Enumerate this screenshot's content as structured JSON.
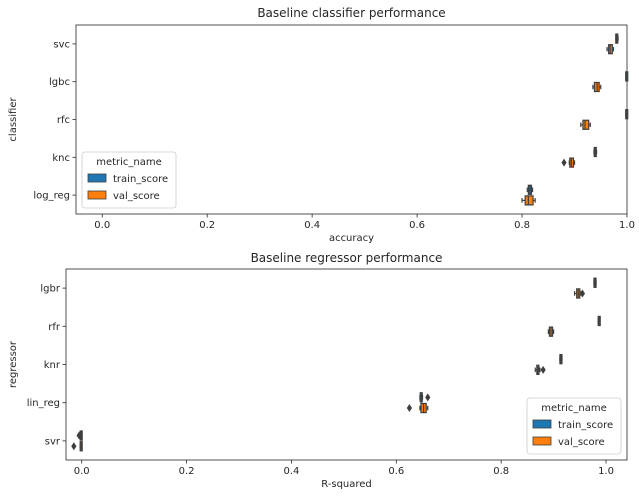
{
  "chart_data": [
    {
      "type": "boxplot-horizontal",
      "title": "Baseline classifier performance",
      "xlabel": "accuracy",
      "ylabel": "classifier",
      "xlim": [
        -0.05,
        1.0
      ],
      "xticks": [
        "0.0",
        "0.2",
        "0.4",
        "0.6",
        "0.8",
        "1.0"
      ],
      "categories": [
        "svc",
        "lgbc",
        "rfc",
        "knc",
        "log_reg"
      ],
      "legend": {
        "title": "metric_name",
        "position": "lower-left",
        "entries": [
          "train_score",
          "val_score"
        ]
      },
      "series": [
        {
          "name": "train_score",
          "color": "#1f77b4",
          "boxes": [
            {
              "min": 0.979,
              "q1": 0.979,
              "median": 0.98,
              "q3": 0.982,
              "max": 0.983,
              "outliers": []
            },
            {
              "min": 0.998,
              "q1": 0.999,
              "median": 0.999,
              "q3": 1.0,
              "max": 1.0,
              "outliers": []
            },
            {
              "min": 0.998,
              "q1": 0.999,
              "median": 0.999,
              "q3": 1.0,
              "max": 1.0,
              "outliers": []
            },
            {
              "min": 0.937,
              "q1": 0.938,
              "median": 0.94,
              "q3": 0.941,
              "max": 0.942,
              "outliers": []
            },
            {
              "min": 0.81,
              "q1": 0.812,
              "median": 0.815,
              "q3": 0.818,
              "max": 0.82,
              "outliers": []
            }
          ]
        },
        {
          "name": "val_score",
          "color": "#ff7f0e",
          "boxes": [
            {
              "min": 0.962,
              "q1": 0.965,
              "median": 0.968,
              "q3": 0.972,
              "max": 0.974,
              "outliers": []
            },
            {
              "min": 0.935,
              "q1": 0.938,
              "median": 0.943,
              "q3": 0.947,
              "max": 0.95,
              "outliers": []
            },
            {
              "min": 0.912,
              "q1": 0.916,
              "median": 0.92,
              "q3": 0.927,
              "max": 0.93,
              "outliers": []
            },
            {
              "min": 0.89,
              "q1": 0.891,
              "median": 0.894,
              "q3": 0.898,
              "max": 0.9,
              "outliers": [
                0.88
              ]
            },
            {
              "min": 0.8,
              "q1": 0.806,
              "median": 0.812,
              "q3": 0.821,
              "max": 0.825,
              "outliers": []
            }
          ]
        }
      ]
    },
    {
      "type": "boxplot-horizontal",
      "title": "Baseline regressor performance",
      "xlabel": "R-squared",
      "ylabel": "regressor",
      "xlim": [
        -0.03,
        1.04
      ],
      "xticks": [
        "0.0",
        "0.2",
        "0.4",
        "0.6",
        "0.8",
        "1.0"
      ],
      "categories": [
        "lgbr",
        "rfr",
        "knr",
        "lin_reg",
        "svr"
      ],
      "legend": {
        "title": "metric_name",
        "position": "lower-right",
        "entries": [
          "train_score",
          "val_score"
        ]
      },
      "series": [
        {
          "name": "train_score",
          "color": "#1f77b4",
          "boxes": [
            {
              "min": 0.977,
              "q1": 0.978,
              "median": 0.979,
              "q3": 0.98,
              "max": 0.981,
              "outliers": []
            },
            {
              "min": 0.985,
              "q1": 0.986,
              "median": 0.987,
              "q3": 0.988,
              "max": 0.988,
              "outliers": []
            },
            {
              "min": 0.912,
              "q1": 0.913,
              "median": 0.914,
              "q3": 0.915,
              "max": 0.916,
              "outliers": []
            },
            {
              "min": 0.645,
              "q1": 0.646,
              "median": 0.648,
              "q3": 0.649,
              "max": 0.65,
              "outliers": [
                0.66
              ]
            },
            {
              "min": -0.003,
              "q1": -0.002,
              "median": -0.001,
              "q3": 0.0,
              "max": 0.0,
              "outliers": [
                -0.005
              ]
            }
          ]
        },
        {
          "name": "val_score",
          "color": "#ff7f0e",
          "boxes": [
            {
              "min": 0.94,
              "q1": 0.944,
              "median": 0.947,
              "q3": 0.95,
              "max": 0.952,
              "outliers": [
                0.955
              ]
            },
            {
              "min": 0.89,
              "q1": 0.892,
              "median": 0.895,
              "q3": 0.898,
              "max": 0.9,
              "outliers": []
            },
            {
              "min": 0.865,
              "q1": 0.868,
              "median": 0.87,
              "q3": 0.872,
              "max": 0.874,
              "outliers": [
                0.88
              ]
            },
            {
              "min": 0.645,
              "q1": 0.647,
              "median": 0.652,
              "q3": 0.657,
              "max": 0.66,
              "outliers": [
                0.625
              ]
            },
            {
              "min": -0.003,
              "q1": -0.002,
              "median": -0.001,
              "q3": 0.0,
              "max": 0.0,
              "outliers": [
                -0.015
              ]
            }
          ]
        }
      ]
    }
  ]
}
